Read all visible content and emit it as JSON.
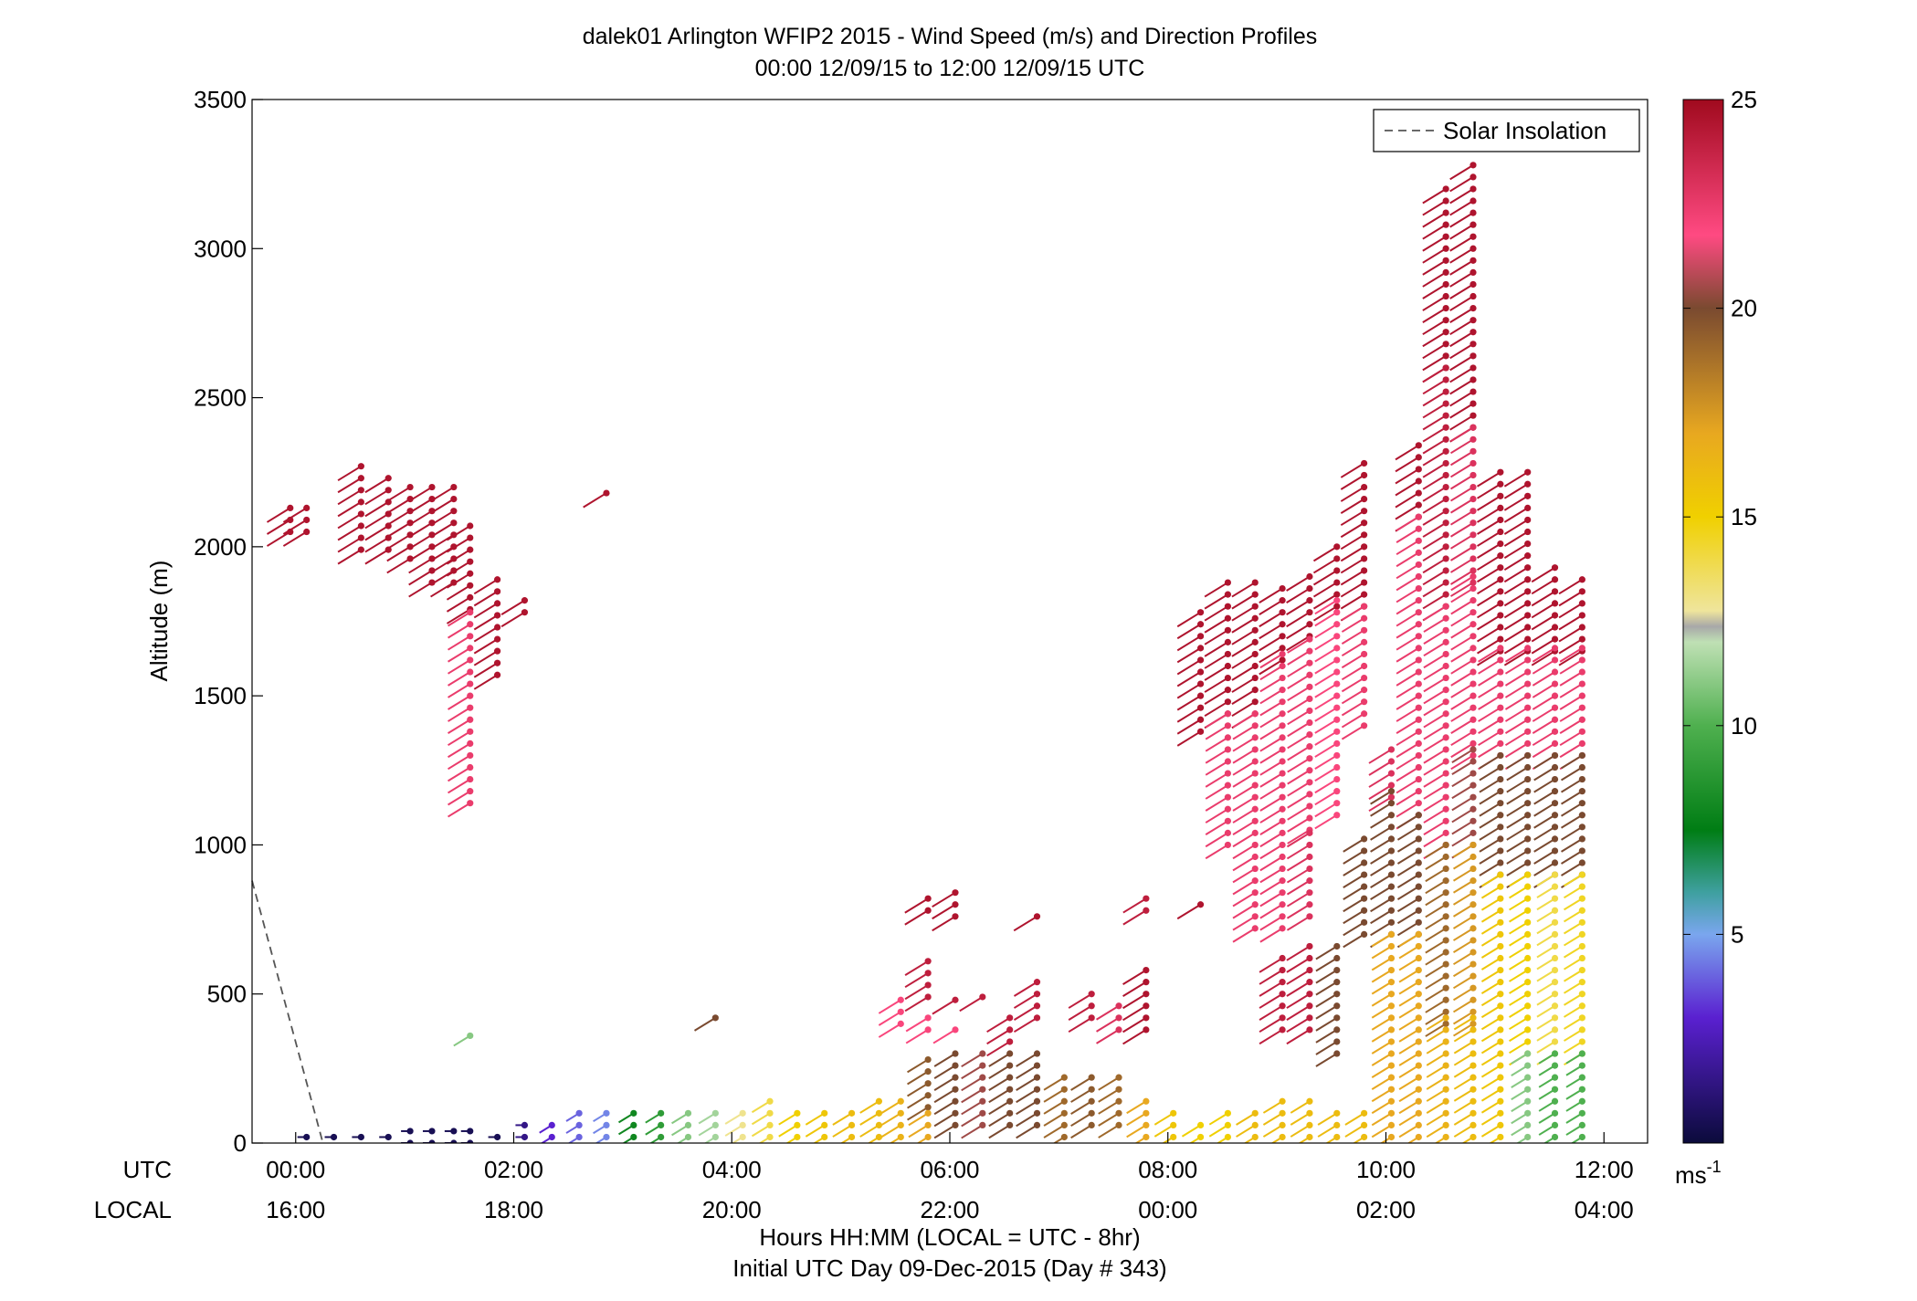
{
  "chart_data": {
    "type": "scatter",
    "title": "dalek01 Arlington WFIP2 2015 - Wind Speed (m/s) and Direction Profiles",
    "subtitle": "00:00 12/09/15 to 12:00 12/09/15  UTC",
    "ylabel": "Altitude (m)",
    "xlabel": "Hours HH:MM  (LOCAL = UTC - 8hr)",
    "xlabel2": "Initial UTC Day 09-Dec-2015 (Day # 343)",
    "ylim": [
      0,
      3500
    ],
    "xlim_hours": [
      -0.4,
      12.4
    ],
    "y_ticks": [
      "0",
      "500",
      "1000",
      "1500",
      "2000",
      "2500",
      "3000",
      "3500"
    ],
    "y_tick_values": [
      0,
      500,
      1000,
      1500,
      2000,
      2500,
      3000,
      3500
    ],
    "x_ticks_hours": [
      0,
      2,
      4,
      6,
      8,
      10,
      12
    ],
    "x_ticks_utc": [
      "00:00",
      "02:00",
      "04:00",
      "06:00",
      "08:00",
      "10:00",
      "12:00"
    ],
    "x_ticks_local": [
      "16:00",
      "18:00",
      "20:00",
      "22:00",
      "00:00",
      "02:00",
      "04:00"
    ],
    "row_label_utc": "UTC",
    "row_label_local": "LOCAL",
    "legend_entry": "Solar Insolation",
    "legend_position": "top-right",
    "solar_insolation_line": {
      "hours": [
        -0.4,
        0.25
      ],
      "altitude": [
        880,
        0
      ]
    },
    "colorbar": {
      "range": [
        0,
        25
      ],
      "ticks": [
        "5",
        "10",
        "15",
        "20",
        "25"
      ],
      "tick_values": [
        5,
        10,
        15,
        20,
        25
      ],
      "units_base": "ms",
      "units_exp": "-1"
    },
    "profiles": [
      {
        "t": -0.05,
        "bands": [
          {
            "z0": 2050,
            "z1": 2140,
            "s": 24.5
          }
        ]
      },
      {
        "t": 0.1,
        "bands": [
          {
            "z0": 2050,
            "z1": 2140,
            "s": 24.5
          },
          {
            "z0": 20,
            "z1": 20,
            "s": 0.5
          }
        ]
      },
      {
        "t": 0.35,
        "bands": [
          {
            "z0": 20,
            "z1": 20,
            "s": 0.5
          }
        ]
      },
      {
        "t": 0.6,
        "bands": [
          {
            "z0": 1990,
            "z1": 2260,
            "s": 24.5
          },
          {
            "z0": 20,
            "z1": 20,
            "s": 0.5
          }
        ]
      },
      {
        "t": 0.85,
        "bands": [
          {
            "z0": 1990,
            "z1": 2220,
            "s": 24.5
          },
          {
            "z0": 20,
            "z1": 20,
            "s": 0.5
          }
        ]
      },
      {
        "t": 1.05,
        "bands": [
          {
            "z0": 1960,
            "z1": 2180,
            "s": 24.5
          },
          {
            "z0": 0,
            "z1": 20,
            "s": 0.5
          }
        ]
      },
      {
        "t": 1.25,
        "bands": [
          {
            "z0": 1880,
            "z1": 2180,
            "s": 24.5
          },
          {
            "z0": 0,
            "z1": 20,
            "s": 0.5
          }
        ]
      },
      {
        "t": 1.45,
        "bands": [
          {
            "z0": 1880,
            "z1": 2180,
            "s": 24.5
          },
          {
            "z0": 0,
            "z1": 20,
            "s": 0.5
          }
        ]
      },
      {
        "t": 1.6,
        "bands": [
          {
            "z0": 1790,
            "z1": 2080,
            "s": 24.5
          },
          {
            "z0": 1140,
            "z1": 1790,
            "s": 22.5
          },
          {
            "z0": 360,
            "z1": 360,
            "s": 11
          },
          {
            "z0": 0,
            "z1": 20,
            "s": 0.5
          }
        ]
      },
      {
        "t": 1.85,
        "bands": [
          {
            "z0": 1570,
            "z1": 1870,
            "s": 24.5
          },
          {
            "z0": 20,
            "z1": 20,
            "s": 0.5
          }
        ]
      },
      {
        "t": 2.1,
        "bands": [
          {
            "z0": 1780,
            "z1": 1830,
            "s": 24.5
          },
          {
            "z0": 20,
            "z1": 60,
            "s": 1.5
          }
        ]
      },
      {
        "t": 2.35,
        "bands": [
          {
            "z0": 20,
            "z1": 60,
            "s": 3
          }
        ]
      },
      {
        "t": 2.6,
        "bands": [
          {
            "z0": 20,
            "z1": 80,
            "s": 4
          }
        ]
      },
      {
        "t": 2.85,
        "bands": [
          {
            "z0": 2180,
            "z1": 2180,
            "s": 24.5
          },
          {
            "z0": 20,
            "z1": 80,
            "s": 4.5
          }
        ]
      },
      {
        "t": 3.1,
        "bands": [
          {
            "z0": 20,
            "z1": 80,
            "s": 8
          }
        ]
      },
      {
        "t": 3.35,
        "bands": [
          {
            "z0": 20,
            "z1": 80,
            "s": 9
          }
        ]
      },
      {
        "t": 3.6,
        "bands": [
          {
            "z0": 20,
            "z1": 80,
            "s": 11
          }
        ]
      },
      {
        "t": 3.85,
        "bands": [
          {
            "z0": 420,
            "z1": 420,
            "s": 20
          },
          {
            "z0": 20,
            "z1": 80,
            "s": 11.5
          }
        ]
      },
      {
        "t": 4.1,
        "bands": [
          {
            "z0": 20,
            "z1": 100,
            "s": 13
          }
        ]
      },
      {
        "t": 4.35,
        "bands": [
          {
            "z0": 20,
            "z1": 120,
            "s": 14
          }
        ]
      },
      {
        "t": 4.6,
        "bands": [
          {
            "z0": 20,
            "z1": 100,
            "s": 15
          }
        ]
      },
      {
        "t": 4.85,
        "bands": [
          {
            "z0": 20,
            "z1": 100,
            "s": 15.5
          }
        ]
      },
      {
        "t": 5.1,
        "bands": [
          {
            "z0": 20,
            "z1": 100,
            "s": 16
          }
        ]
      },
      {
        "t": 5.35,
        "bands": [
          {
            "z0": 20,
            "z1": 120,
            "s": 16
          }
        ]
      },
      {
        "t": 5.55,
        "bands": [
          {
            "z0": 400,
            "z1": 480,
            "s": 22
          },
          {
            "z0": 20,
            "z1": 140,
            "s": 16.5
          }
        ]
      },
      {
        "t": 5.8,
        "bands": [
          {
            "z0": 780,
            "z1": 830,
            "s": 24.5
          },
          {
            "z0": 490,
            "z1": 590,
            "s": 24
          },
          {
            "z0": 380,
            "z1": 420,
            "s": 22
          },
          {
            "z0": 120,
            "z1": 280,
            "s": 19.5
          },
          {
            "z0": 20,
            "z1": 100,
            "s": 17
          }
        ]
      },
      {
        "t": 6.05,
        "bands": [
          {
            "z0": 760,
            "z1": 830,
            "s": 24.5
          },
          {
            "z0": 480,
            "z1": 480,
            "s": 24
          },
          {
            "z0": 380,
            "z1": 380,
            "s": 22
          },
          {
            "z0": 60,
            "z1": 280,
            "s": 20
          }
        ]
      },
      {
        "t": 6.3,
        "bands": [
          {
            "z0": 490,
            "z1": 490,
            "s": 24
          },
          {
            "z0": 60,
            "z1": 280,
            "s": 20.5
          }
        ]
      },
      {
        "t": 6.55,
        "bands": [
          {
            "z0": 340,
            "z1": 420,
            "s": 24
          },
          {
            "z0": 60,
            "z1": 280,
            "s": 20
          }
        ]
      },
      {
        "t": 6.8,
        "bands": [
          {
            "z0": 760,
            "z1": 760,
            "s": 24.5
          },
          {
            "z0": 420,
            "z1": 530,
            "s": 24
          },
          {
            "z0": 60,
            "z1": 280,
            "s": 20
          }
        ]
      },
      {
        "t": 7.05,
        "bands": [
          {
            "z0": 20,
            "z1": 200,
            "s": 19
          }
        ]
      },
      {
        "t": 7.3,
        "bands": [
          {
            "z0": 420,
            "z1": 480,
            "s": 24
          },
          {
            "z0": 60,
            "z1": 200,
            "s": 19.5
          }
        ]
      },
      {
        "t": 7.55,
        "bands": [
          {
            "z0": 380,
            "z1": 460,
            "s": 23
          },
          {
            "z0": 60,
            "z1": 200,
            "s": 19
          }
        ]
      },
      {
        "t": 7.8,
        "bands": [
          {
            "z0": 780,
            "z1": 830,
            "s": 24
          },
          {
            "z0": 380,
            "z1": 560,
            "s": 24.5
          },
          {
            "z0": 20,
            "z1": 140,
            "s": 17
          }
        ]
      },
      {
        "t": 8.05,
        "bands": [
          {
            "z0": 20,
            "z1": 80,
            "s": 15.5
          }
        ]
      },
      {
        "t": 8.3,
        "bands": [
          {
            "z0": 1380,
            "z1": 1780,
            "s": 24.5
          },
          {
            "z0": 800,
            "z1": 800,
            "s": 24.5
          },
          {
            "z0": 20,
            "z1": 60,
            "s": 15
          }
        ]
      },
      {
        "t": 8.55,
        "bands": [
          {
            "z0": 1440,
            "z1": 1870,
            "s": 24.5
          },
          {
            "z0": 1000,
            "z1": 1440,
            "s": 22.5
          },
          {
            "z0": 20,
            "z1": 80,
            "s": 15
          }
        ]
      },
      {
        "t": 8.8,
        "bands": [
          {
            "z0": 1440,
            "z1": 1870,
            "s": 24.5
          },
          {
            "z0": 720,
            "z1": 1440,
            "s": 22.5
          },
          {
            "z0": 20,
            "z1": 100,
            "s": 16
          }
        ]
      },
      {
        "t": 9.05,
        "bands": [
          {
            "z0": 1620,
            "z1": 1870,
            "s": 24.5
          },
          {
            "z0": 720,
            "z1": 1620,
            "s": 22.5
          },
          {
            "z0": 380,
            "z1": 600,
            "s": 24
          },
          {
            "z0": 20,
            "z1": 120,
            "s": 16
          }
        ]
      },
      {
        "t": 9.3,
        "bands": [
          {
            "z0": 1700,
            "z1": 1900,
            "s": 24.5
          },
          {
            "z0": 1050,
            "z1": 1700,
            "s": 22.5
          },
          {
            "z0": 760,
            "z1": 1050,
            "s": 23
          },
          {
            "z0": 380,
            "z1": 640,
            "s": 24
          },
          {
            "z0": 20,
            "z1": 120,
            "s": 16
          }
        ]
      },
      {
        "t": 9.55,
        "bands": [
          {
            "z0": 1800,
            "z1": 2000,
            "s": 24.5
          },
          {
            "z0": 1100,
            "z1": 1800,
            "s": 22
          },
          {
            "z0": 300,
            "z1": 650,
            "s": 20
          },
          {
            "z0": 20,
            "z1": 100,
            "s": 16
          }
        ]
      },
      {
        "t": 9.8,
        "bands": [
          {
            "z0": 1800,
            "z1": 2260,
            "s": 24.5
          },
          {
            "z0": 1400,
            "z1": 1800,
            "s": 22.5
          },
          {
            "z0": 700,
            "z1": 1000,
            "s": 20
          },
          {
            "z0": 20,
            "z1": 100,
            "s": 16
          }
        ]
      },
      {
        "t": 10.05,
        "bands": [
          {
            "z0": 1160,
            "z1": 1330,
            "s": 23
          },
          {
            "z0": 700,
            "z1": 1160,
            "s": 20
          },
          {
            "z0": 20,
            "z1": 700,
            "s": 17
          }
        ]
      },
      {
        "t": 10.3,
        "bands": [
          {
            "z0": 2100,
            "z1": 2350,
            "s": 24.5
          },
          {
            "z0": 1100,
            "z1": 2100,
            "s": 22.5
          },
          {
            "z0": 700,
            "z1": 1100,
            "s": 20
          },
          {
            "z0": 20,
            "z1": 700,
            "s": 17
          }
        ]
      },
      {
        "t": 10.55,
        "bands": [
          {
            "z0": 2600,
            "z1": 3180,
            "s": 24.5
          },
          {
            "z0": 1800,
            "z1": 2600,
            "s": 24
          },
          {
            "z0": 1000,
            "z1": 1800,
            "s": 22.5
          },
          {
            "z0": 400,
            "z1": 1000,
            "s": 19
          },
          {
            "z0": 20,
            "z1": 400,
            "s": 16.5
          }
        ]
      },
      {
        "t": 10.8,
        "bands": [
          {
            "z0": 2400,
            "z1": 3270,
            "s": 24.5
          },
          {
            "z0": 1880,
            "z1": 2400,
            "s": 23
          },
          {
            "z0": 1300,
            "z1": 1880,
            "s": 22.5
          },
          {
            "z0": 1000,
            "z1": 1300,
            "s": 20.5
          },
          {
            "z0": 400,
            "z1": 1000,
            "s": 17.5
          },
          {
            "z0": 20,
            "z1": 400,
            "s": 16
          }
        ]
      },
      {
        "t": 11.05,
        "bands": [
          {
            "z0": 1650,
            "z1": 2230,
            "s": 24.5
          },
          {
            "z0": 1300,
            "z1": 1650,
            "s": 22.5
          },
          {
            "z0": 900,
            "z1": 1300,
            "s": 20
          },
          {
            "z0": 20,
            "z1": 900,
            "s": 15.5
          }
        ]
      },
      {
        "t": 11.3,
        "bands": [
          {
            "z0": 1650,
            "z1": 2230,
            "s": 24.5
          },
          {
            "z0": 1300,
            "z1": 1650,
            "s": 22.5
          },
          {
            "z0": 900,
            "z1": 1300,
            "s": 20
          },
          {
            "z0": 300,
            "z1": 900,
            "s": 15
          },
          {
            "z0": 20,
            "z1": 300,
            "s": 11
          }
        ]
      },
      {
        "t": 11.55,
        "bands": [
          {
            "z0": 1650,
            "z1": 1910,
            "s": 24.5
          },
          {
            "z0": 1300,
            "z1": 1650,
            "s": 22.5
          },
          {
            "z0": 900,
            "z1": 1300,
            "s": 20
          },
          {
            "z0": 300,
            "z1": 900,
            "s": 14
          },
          {
            "z0": 20,
            "z1": 300,
            "s": 10
          }
        ]
      },
      {
        "t": 11.8,
        "bands": [
          {
            "z0": 1650,
            "z1": 1870,
            "s": 24.5
          },
          {
            "z0": 1300,
            "z1": 1650,
            "s": 22.5
          },
          {
            "z0": 900,
            "z1": 1300,
            "s": 20
          },
          {
            "z0": 300,
            "z1": 900,
            "s": 14.5
          },
          {
            "z0": 20,
            "z1": 300,
            "s": 10
          }
        ]
      }
    ]
  }
}
